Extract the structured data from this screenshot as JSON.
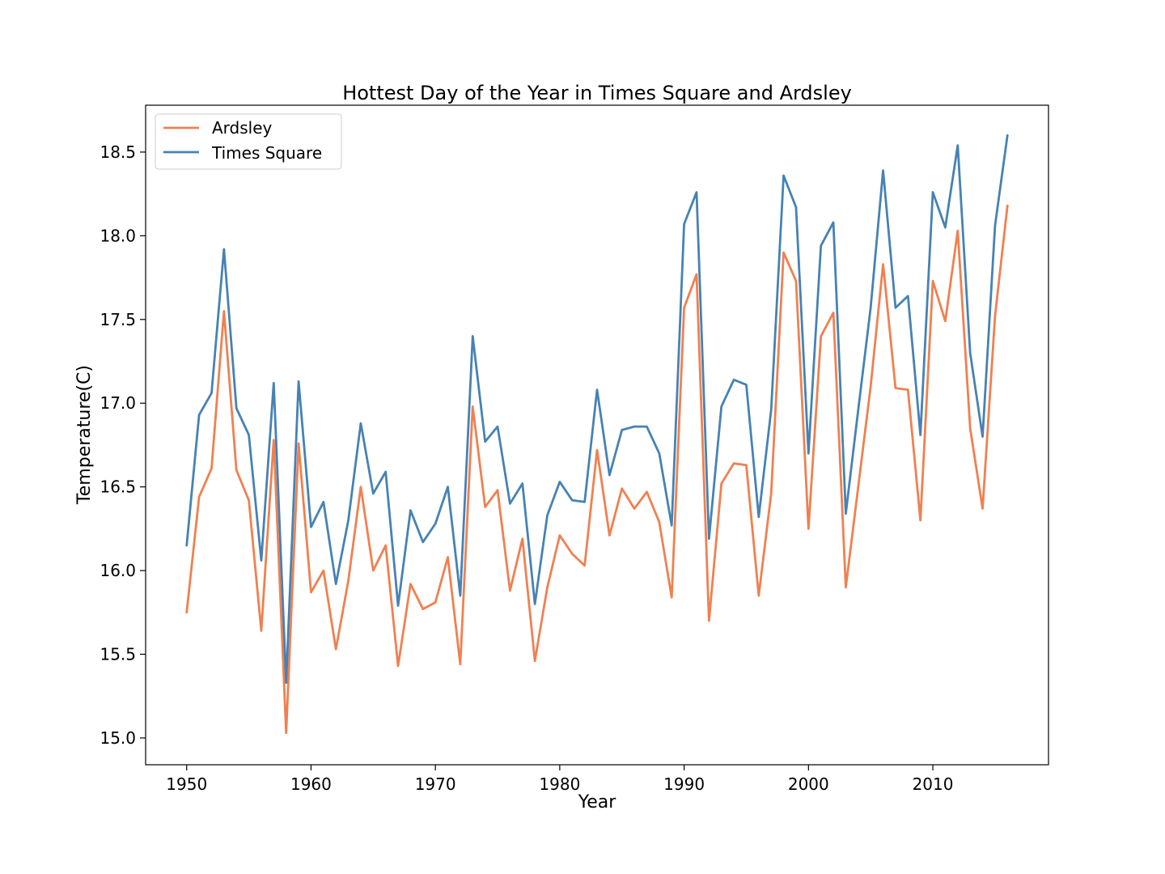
{
  "chart_data": {
    "type": "line",
    "title": "Hottest Day of the Year in Times Square and Ardsley",
    "xlabel": "Year",
    "ylabel": "Temperature(C)",
    "xlim": [
      1946.7,
      2019.3
    ],
    "ylim": [
      14.84,
      18.78
    ],
    "xticks": [
      1950,
      1960,
      1970,
      1980,
      1990,
      2000,
      2010
    ],
    "yticks": [
      15.0,
      15.5,
      16.0,
      16.5,
      17.0,
      17.5,
      18.0,
      18.5
    ],
    "ytick_labels": [
      "15.0",
      "15.5",
      "16.0",
      "16.5",
      "17.0",
      "17.5",
      "18.0",
      "18.5"
    ],
    "legend_position": "top-left",
    "grid": false,
    "x": [
      1950,
      1951,
      1952,
      1953,
      1954,
      1955,
      1956,
      1957,
      1958,
      1959,
      1960,
      1961,
      1962,
      1963,
      1964,
      1965,
      1966,
      1967,
      1968,
      1969,
      1970,
      1971,
      1972,
      1973,
      1974,
      1975,
      1976,
      1977,
      1978,
      1979,
      1980,
      1981,
      1982,
      1983,
      1984,
      1985,
      1986,
      1987,
      1988,
      1989,
      1990,
      1991,
      1992,
      1993,
      1994,
      1995,
      1996,
      1997,
      1998,
      1999,
      2000,
      2001,
      2002,
      2003,
      2004,
      2005,
      2006,
      2007,
      2008,
      2009,
      2010,
      2011,
      2012,
      2013,
      2014,
      2015,
      2016
    ],
    "series": [
      {
        "name": "Ardsley",
        "color": "#f08050",
        "values": [
          15.75,
          16.44,
          16.61,
          17.55,
          16.6,
          16.42,
          15.64,
          16.78,
          15.03,
          16.76,
          15.87,
          16.0,
          15.53,
          15.94,
          16.5,
          16.0,
          16.15,
          15.43,
          15.92,
          15.77,
          15.81,
          16.08,
          15.44,
          16.98,
          16.38,
          16.48,
          15.88,
          16.19,
          15.46,
          15.9,
          16.21,
          16.1,
          16.03,
          16.72,
          16.21,
          16.49,
          16.37,
          16.47,
          16.29,
          15.84,
          17.57,
          17.77,
          15.7,
          16.52,
          16.64,
          16.63,
          15.85,
          16.46,
          17.9,
          17.73,
          16.25,
          17.4,
          17.54,
          15.9,
          16.5,
          17.1,
          17.83,
          17.09,
          17.08,
          16.3,
          17.73,
          17.49,
          18.03,
          16.85,
          16.37,
          17.52,
          18.18
        ]
      },
      {
        "name": "Times Square",
        "color": "#4682b4",
        "values": [
          16.15,
          16.93,
          17.06,
          17.92,
          16.97,
          16.81,
          16.06,
          17.12,
          15.33,
          17.13,
          16.26,
          16.41,
          15.92,
          16.3,
          16.88,
          16.46,
          16.59,
          15.79,
          16.36,
          16.17,
          16.28,
          16.5,
          15.85,
          17.4,
          16.77,
          16.86,
          16.4,
          16.52,
          15.8,
          16.33,
          16.53,
          16.42,
          16.41,
          17.08,
          16.57,
          16.84,
          16.86,
          16.86,
          16.7,
          16.27,
          18.07,
          18.26,
          16.19,
          16.98,
          17.14,
          17.11,
          16.32,
          16.96,
          18.36,
          18.17,
          16.7,
          17.94,
          18.08,
          16.34,
          16.96,
          17.57,
          18.39,
          17.57,
          17.64,
          16.81,
          18.26,
          18.05,
          18.54,
          17.3,
          16.8,
          18.06,
          18.6
        ]
      }
    ]
  }
}
